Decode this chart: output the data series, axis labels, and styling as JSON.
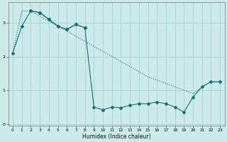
{
  "xlabel": "Humidex (Indice chaleur)",
  "bg_color": "#cceaea",
  "grid_color": "#aad4d4",
  "line_color": "#1a7070",
  "xlim": [
    -0.5,
    23.5
  ],
  "ylim": [
    -0.05,
    3.6
  ],
  "yticks": [
    0,
    1,
    2,
    3
  ],
  "xticks": [
    0,
    1,
    2,
    3,
    4,
    5,
    6,
    7,
    8,
    9,
    10,
    11,
    12,
    13,
    14,
    15,
    16,
    17,
    18,
    19,
    20,
    21,
    22,
    23
  ],
  "line_dotted_x": [
    0,
    1,
    2,
    3,
    4,
    5,
    6,
    7,
    8,
    9,
    10,
    11,
    12,
    13,
    14,
    15,
    16,
    17,
    18,
    19,
    20,
    21,
    22,
    23
  ],
  "line_dotted_y": [
    2.1,
    3.35,
    3.35,
    3.2,
    3.05,
    2.9,
    2.75,
    2.6,
    2.45,
    2.3,
    2.15,
    2.0,
    1.85,
    1.7,
    1.55,
    1.4,
    1.3,
    1.2,
    1.1,
    1.0,
    0.9,
    1.1,
    1.25,
    1.25
  ],
  "line_zigzag_x": [
    0,
    1,
    2,
    3,
    4,
    5,
    6,
    7,
    8,
    9,
    10,
    11,
    12,
    13,
    14,
    15,
    16,
    17,
    18,
    19,
    20,
    21,
    22,
    23
  ],
  "line_zigzag_y": [
    2.1,
    2.9,
    3.35,
    3.3,
    3.1,
    2.9,
    2.8,
    2.95,
    2.85,
    0.5,
    0.42,
    0.5,
    0.48,
    0.55,
    0.6,
    0.6,
    0.65,
    0.6,
    0.5,
    0.35,
    0.8,
    1.1,
    1.25,
    1.25
  ],
  "line_top_x": [
    2,
    3,
    4,
    5,
    6,
    7,
    8
  ],
  "line_top_y": [
    3.35,
    3.3,
    3.1,
    2.9,
    2.8,
    2.95,
    2.85
  ]
}
